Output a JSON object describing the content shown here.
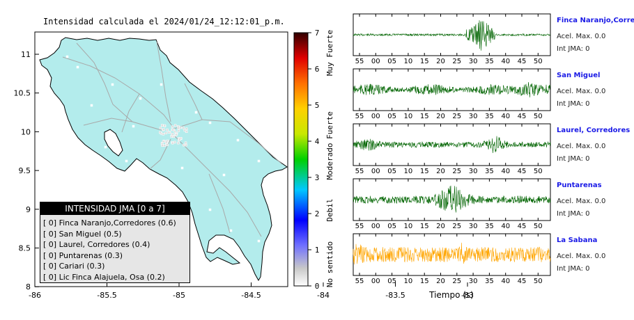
{
  "map": {
    "title": "Intensidad calculada el 2024/01/24_12:12:01_p.m.",
    "x_ticks": [
      "-86",
      "-85.5",
      "-85",
      "-84.5",
      "-84",
      "-83.5",
      "-83"
    ],
    "y_ticks": [
      "11",
      "10.5",
      "10",
      "9.5",
      "9",
      "8.5",
      "8"
    ],
    "colorbar_ticks": [
      "7",
      "6",
      "5",
      "4",
      "3",
      "2",
      "1",
      "0"
    ],
    "colorbar_labels": [
      "Muy Fuerte",
      "Fuerte",
      "Moderado",
      "Debil",
      "No sentido"
    ],
    "land_color": "#b3ecec"
  },
  "legend": {
    "header": "INTENSIDAD JMA [0 a 7]",
    "items": [
      "[ 0]  Finca Naranjo,Corredores (0.6)",
      "[ 0]  San Miguel (0.5)",
      "[ 0]  Laurel, Corredores (0.4)",
      "[ 0]  Puntarenas (0.3)",
      "[ 0]  Cariari (0.3)",
      "[ 0]  Lic Finca Alajuela, Osa (0.2)"
    ]
  },
  "stations": [
    {
      "name": "Finca Naranjo,Corredor",
      "acel": "Acel. Max. 0.0",
      "int": "Int JMA: 0",
      "color": "#006400",
      "amp": 0.7,
      "ticks": [
        "55",
        "00",
        "05",
        "10",
        "15",
        "20",
        "25",
        "30",
        "35",
        "40",
        "45",
        "50"
      ]
    },
    {
      "name": "San Miguel",
      "acel": "Acel. Max. 0.0",
      "int": "Int JMA: 0",
      "color": "#006400",
      "amp": 0.6,
      "ticks": [
        "55",
        "00",
        "05",
        "10",
        "15",
        "20",
        "25",
        "30",
        "35",
        "40",
        "45",
        "50"
      ]
    },
    {
      "name": "Laurel, Corredores",
      "acel": "Acel. Max. 0.0",
      "int": "Int JMA: 0",
      "color": "#006400",
      "amp": 0.6,
      "ticks": [
        "55",
        "00",
        "05",
        "10",
        "15",
        "20",
        "25",
        "30",
        "35",
        "40",
        "45",
        "50"
      ]
    },
    {
      "name": "Puntarenas",
      "acel": "Acel. Max. 0.0",
      "int": "Int JMA: 0",
      "color": "#006400",
      "amp": 0.8,
      "ticks": [
        "55",
        "00",
        "05",
        "10",
        "15",
        "20",
        "25",
        "30",
        "35",
        "40",
        "45",
        "50"
      ]
    },
    {
      "name": "La Sabana",
      "acel": "Acel. Max. 0.0",
      "int": "Int JMA: 0",
      "color": "#ffa500",
      "amp": 0.9,
      "ticks": [
        "55",
        "00",
        "05",
        "10",
        "15",
        "20",
        "25",
        "30",
        "35",
        "40",
        "45",
        "50"
      ]
    }
  ],
  "xlabel": "Tiempo (s)"
}
